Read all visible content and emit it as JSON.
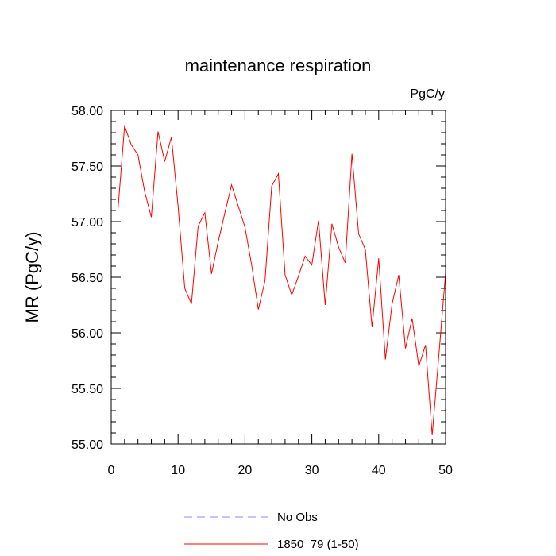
{
  "chart_data": {
    "type": "line",
    "title": "maintenance respiration",
    "units": "PgC/y",
    "ylabel": "MR  (PgC/y)",
    "xlabel": "",
    "xlim": [
      0,
      50
    ],
    "ylim": [
      55.0,
      58.0
    ],
    "x_ticks": [
      0,
      10,
      20,
      30,
      40,
      50
    ],
    "y_ticks": [
      55.0,
      55.5,
      56.0,
      56.5,
      57.0,
      57.5,
      58.0
    ],
    "y_tick_labels": [
      "55.00",
      "55.50",
      "56.00",
      "56.50",
      "57.00",
      "57.50",
      "58.00"
    ],
    "grid": false,
    "series": [
      {
        "name": "1850_79 (1-50)",
        "color": "#ff0000",
        "style": "solid",
        "x": [
          1,
          2,
          3,
          4,
          5,
          6,
          7,
          8,
          9,
          10,
          11,
          12,
          13,
          14,
          15,
          16,
          17,
          18,
          19,
          20,
          21,
          22,
          23,
          24,
          25,
          26,
          27,
          28,
          29,
          30,
          31,
          32,
          33,
          34,
          35,
          36,
          37,
          38,
          39,
          40,
          41,
          42,
          43,
          44,
          45,
          46,
          47,
          48,
          49,
          50
        ],
        "values": [
          57.1,
          57.86,
          57.69,
          57.6,
          57.27,
          57.04,
          57.81,
          57.54,
          57.76,
          57.14,
          56.4,
          56.26,
          56.96,
          57.08,
          56.53,
          56.82,
          57.08,
          57.33,
          57.14,
          56.95,
          56.61,
          56.21,
          56.47,
          57.32,
          57.43,
          56.52,
          56.34,
          56.51,
          56.69,
          56.61,
          57.01,
          56.25,
          56.98,
          56.77,
          56.63,
          57.61,
          56.89,
          56.75,
          56.05,
          56.67,
          55.76,
          56.26,
          56.52,
          55.86,
          56.13,
          55.7,
          55.89,
          55.08,
          55.8,
          56.54
        ]
      },
      {
        "name": "No Obs",
        "color": "#8888ff",
        "style": "dashed",
        "x": [],
        "values": []
      }
    ],
    "legend_location": "bottom-center"
  }
}
